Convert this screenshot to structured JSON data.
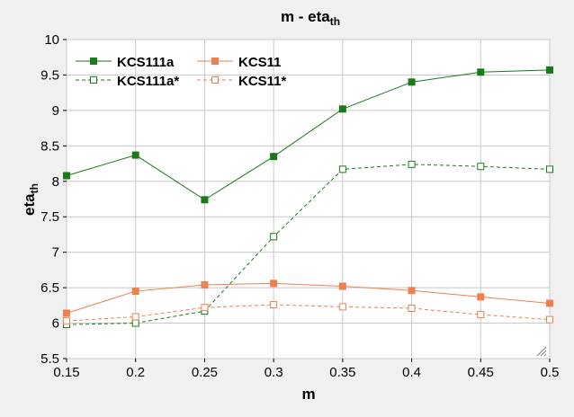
{
  "chart_data": {
    "type": "line",
    "title": "m - eta",
    "title_sub": "th",
    "xlabel": "m",
    "ylabel": "eta",
    "ylabel_sub": "th",
    "xlim": [
      0.15,
      0.5
    ],
    "ylim": [
      5.5,
      10
    ],
    "x": [
      0.15,
      0.2,
      0.25,
      0.3,
      0.35,
      0.4,
      0.45,
      0.5
    ],
    "x_ticks": [
      "0.15",
      "0.2",
      "0.25",
      "0.3",
      "0.35",
      "0.4",
      "0.45",
      "0.5"
    ],
    "y_ticks": [
      {
        "v": 5.5,
        "t": "5.5"
      },
      {
        "v": 6,
        "t": "6"
      },
      {
        "v": 6.5,
        "t": "6.5"
      },
      {
        "v": 7,
        "t": "7"
      },
      {
        "v": 7.5,
        "t": "7.5"
      },
      {
        "v": 8,
        "t": "8"
      },
      {
        "v": 8.5,
        "t": "8.5"
      },
      {
        "v": 9,
        "t": "9"
      },
      {
        "v": 9.5,
        "t": "9.5"
      },
      {
        "v": 10,
        "t": "10"
      }
    ],
    "grid": true,
    "legend_position": "top-left",
    "series": [
      {
        "name": "KCS111a",
        "color": "#1a7a1a",
        "style": "solid",
        "marker": "filled-square",
        "values": [
          8.08,
          8.37,
          7.74,
          8.35,
          9.02,
          9.4,
          9.54,
          9.57
        ]
      },
      {
        "name": "KCS11",
        "color": "#ee7f4f",
        "style": "solid",
        "marker": "filled-square",
        "values": [
          6.14,
          6.45,
          6.54,
          6.56,
          6.52,
          6.46,
          6.37,
          6.28
        ]
      },
      {
        "name": "KCS111a*",
        "color": "#1a7a1a",
        "style": "dashed",
        "marker": "open-square",
        "values": [
          5.98,
          6.0,
          6.17,
          7.22,
          8.17,
          8.24,
          8.21,
          8.17
        ]
      },
      {
        "name": "KCS11*",
        "color": "#ee7f4f",
        "style": "dashed",
        "marker": "open-square",
        "values": [
          6.03,
          6.09,
          6.22,
          6.26,
          6.23,
          6.21,
          6.12,
          6.05
        ]
      }
    ]
  }
}
